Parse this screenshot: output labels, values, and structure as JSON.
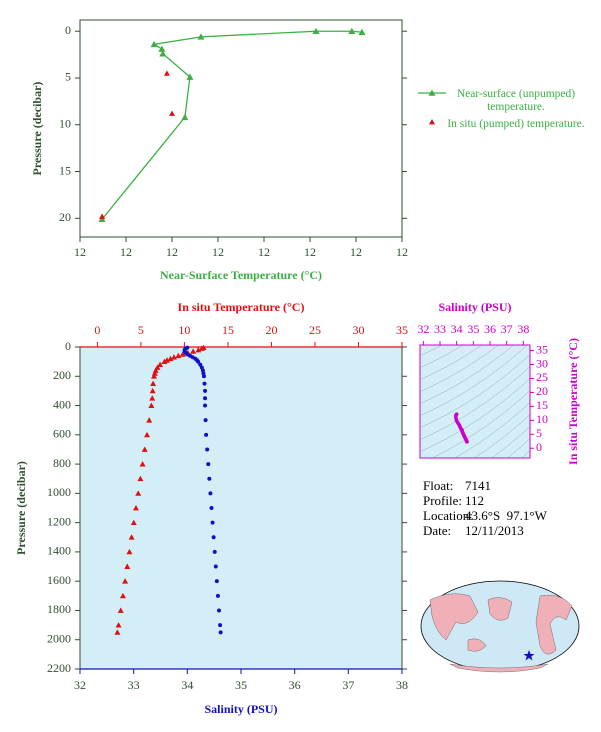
{
  "chart_data": [
    {
      "type": "profile-line",
      "xlabel": "Near-Surface Temperature (°C)",
      "ylabel": "Pressure (decibar)",
      "xlim": [
        11.6,
        12.3
      ],
      "xticks": [
        {
          "value": 11.6,
          "label": "12"
        },
        {
          "value": 11.7,
          "label": "12"
        },
        {
          "value": 11.8,
          "label": "12"
        },
        {
          "value": 11.9,
          "label": "12"
        },
        {
          "value": 12.0,
          "label": "12"
        },
        {
          "value": 12.1,
          "label": "12"
        },
        {
          "value": 12.2,
          "label": "12"
        },
        {
          "value": 12.3,
          "label": "12"
        }
      ],
      "ylim": [
        22,
        -1.2
      ],
      "yticks": [
        0,
        5,
        10,
        15,
        20
      ],
      "series": [
        {
          "name": "Near-surface (unpumped) temperature.",
          "color": "#3cb043",
          "style": "line",
          "x": [
            12.213,
            12.191,
            12.113,
            11.863,
            11.761,
            11.778,
            11.78,
            11.839,
            11.828,
            11.648
          ],
          "y": [
            0.1,
            0,
            0,
            0.6,
            1.4,
            1.9,
            2.4,
            4.9,
            9.2,
            20.1
          ]
        },
        {
          "name": "In situ (pumped) temperature.",
          "color": "#e01010",
          "style": "scatter",
          "x": [
            11.789,
            11.8,
            11.648
          ],
          "y": [
            4.5,
            8.8,
            19.8
          ]
        }
      ]
    },
    {
      "type": "profile",
      "xlabel": "Salinity (PSU)",
      "x2label": "In situ Temperature (°C)",
      "ylabel": "Pressure (decibar)",
      "xlim": [
        32,
        38
      ],
      "xticks": [
        32,
        33,
        34,
        35,
        36,
        37,
        38
      ],
      "x2lim": [
        -2,
        35
      ],
      "x2ticks": [
        0,
        5,
        10,
        15,
        20,
        25,
        30,
        35
      ],
      "ylim": [
        2200,
        0
      ],
      "yticks": [
        0,
        200,
        400,
        600,
        800,
        1000,
        1200,
        1400,
        1600,
        1800,
        2000,
        2200
      ],
      "y": [
        4,
        10,
        20,
        30,
        40,
        50,
        60,
        70,
        80,
        90,
        100,
        120,
        140,
        160,
        180,
        200,
        250,
        300,
        350,
        400,
        500,
        600,
        700,
        800,
        900,
        1000,
        1100,
        1200,
        1300,
        1400,
        1500,
        1600,
        1700,
        1800,
        1900,
        1950
      ],
      "series": [
        {
          "axis": "x2",
          "color": "#e01010",
          "marker": "triangle",
          "values": [
            12.2,
            12.0,
            11.6,
            11.0,
            10.4,
            9.8,
            9.3,
            8.8,
            8.4,
            8.0,
            7.7,
            7.2,
            6.9,
            6.7,
            6.6,
            6.5,
            6.4,
            6.35,
            6.3,
            6.2,
            5.95,
            5.7,
            5.44,
            5.19,
            4.94,
            4.69,
            4.43,
            4.18,
            3.93,
            3.68,
            3.43,
            3.18,
            2.93,
            2.68,
            2.43,
            2.3
          ]
        },
        {
          "axis": "x",
          "color": "#1010c8",
          "marker": "circle",
          "values": [
            34.0,
            33.97,
            33.95,
            33.95,
            33.97,
            34.0,
            34.05,
            34.1,
            34.15,
            34.18,
            34.2,
            34.24,
            34.27,
            34.29,
            34.3,
            34.31,
            34.32,
            34.33,
            34.33,
            34.33,
            34.34,
            34.35,
            34.37,
            34.39,
            34.41,
            34.43,
            34.45,
            34.47,
            34.49,
            34.51,
            34.53,
            34.55,
            34.57,
            34.59,
            34.61,
            34.62
          ]
        }
      ]
    },
    {
      "type": "ts",
      "xlabel": "Salinity (PSU)",
      "ylabel": "In situ Temperature (°C)",
      "color": "#cc00cc",
      "xlim": [
        31.8,
        38.4
      ],
      "xticks": [
        32,
        33,
        34,
        35,
        36,
        37,
        38
      ],
      "ylim": [
        -3.5,
        37
      ],
      "yticks": [
        0,
        5,
        10,
        15,
        20,
        25,
        30,
        35
      ]
    }
  ],
  "float_info": [
    {
      "label": "Float:",
      "value": "7141"
    },
    {
      "label": "Profile:",
      "value": "112"
    },
    {
      "label": "Location:",
      "value": "43.6°S  97.1°W"
    },
    {
      "label": "Date:",
      "value": "12/11/2013"
    }
  ]
}
